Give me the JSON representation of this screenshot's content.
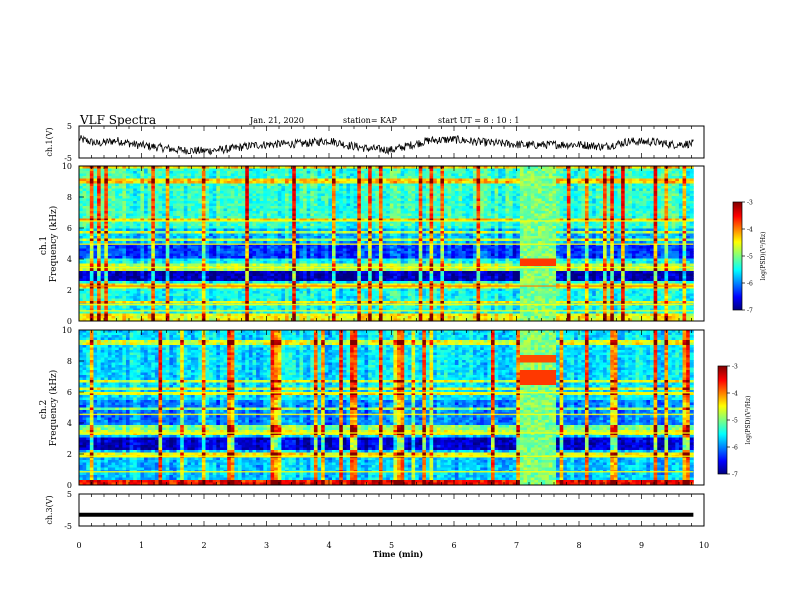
{
  "header": {
    "title": "VLF Spectra",
    "date": "Jan. 21, 2020",
    "station": "station= KAP",
    "start": "start  UT =  8 : 10 : 1"
  },
  "chart_data": [
    {
      "type": "line",
      "panel": "ch1-waveform",
      "ylabel": "ch.1(V)",
      "ylim": [
        -5,
        5
      ],
      "yticks": [
        "5",
        "-5"
      ],
      "xlim": [
        0,
        10
      ],
      "x_end": 9.83,
      "level_estimate": [
        [
          0.0,
          1.0
        ],
        [
          0.3,
          -0.5
        ],
        [
          0.6,
          0.5
        ],
        [
          0.9,
          -0.8
        ],
        [
          1.2,
          -1.5
        ],
        [
          1.6,
          -2.5
        ],
        [
          2.0,
          -2.8
        ],
        [
          2.4,
          -2.2
        ],
        [
          2.8,
          -1.0
        ],
        [
          3.2,
          -0.6
        ],
        [
          3.6,
          -0.5
        ],
        [
          4.0,
          0.5
        ],
        [
          4.3,
          -1.0
        ],
        [
          4.6,
          -2.0
        ],
        [
          5.0,
          -2.5
        ],
        [
          5.3,
          -1.0
        ],
        [
          5.6,
          0.5
        ],
        [
          6.0,
          0.8
        ],
        [
          6.4,
          0.0
        ],
        [
          6.8,
          -0.5
        ],
        [
          7.2,
          -1.0
        ],
        [
          7.6,
          -0.8
        ],
        [
          8.0,
          -0.8
        ],
        [
          8.4,
          -1.5
        ],
        [
          8.8,
          0.2
        ],
        [
          9.2,
          0.0
        ],
        [
          9.5,
          -0.8
        ],
        [
          9.83,
          -0.5
        ]
      ]
    },
    {
      "type": "heatmap",
      "panel": "ch1-spectrogram",
      "ylabel": "ch.1\nFrequency (kHz)",
      "ylim": [
        0,
        10
      ],
      "yticks": [
        "0",
        "2",
        "4",
        "6",
        "8",
        "10"
      ],
      "xlim": [
        0,
        10
      ],
      "x_end": 9.83,
      "burst_interval": [
        7.05,
        7.65
      ],
      "colorbar": {
        "label": "log(PSD)(V²/Hz)",
        "range": [
          -7,
          -3
        ],
        "ticks": [
          "-3",
          "-4",
          "-5",
          "-6",
          "-7"
        ]
      }
    },
    {
      "type": "heatmap",
      "panel": "ch2-spectrogram",
      "ylabel": "ch.2\nFrequency (kHz)",
      "ylim": [
        0,
        10
      ],
      "yticks": [
        "0",
        "2",
        "4",
        "6",
        "8",
        "10"
      ],
      "xlim": [
        0,
        10
      ],
      "x_end": 9.83,
      "burst_interval": [
        7.05,
        7.65
      ],
      "colorbar": {
        "label": "log(PSD)(V²/Hz)",
        "range": [
          -7,
          -3
        ],
        "ticks": [
          "-3",
          "-4",
          "-5",
          "-6",
          "-7"
        ]
      }
    },
    {
      "type": "line",
      "panel": "ch3-waveform",
      "ylabel": "ch.3(V)",
      "ylim": [
        -5,
        5
      ],
      "yticks": [
        "5",
        "-5"
      ],
      "xlim": [
        0,
        10
      ],
      "x_end": 9.83,
      "level_estimate": [
        [
          0.0,
          -1.5
        ],
        [
          9.83,
          -1.5
        ]
      ]
    }
  ],
  "xaxis": {
    "label": "Time (min)",
    "ticks": [
      "0",
      "1",
      "2",
      "3",
      "4",
      "5",
      "6",
      "7",
      "8",
      "9",
      "10"
    ]
  },
  "colors": {
    "colormap": [
      "#00007f",
      "#0000ff",
      "#007fff",
      "#00ffff",
      "#7fff7f",
      "#ffff00",
      "#ff7f00",
      "#ff0000",
      "#7f0000"
    ]
  }
}
